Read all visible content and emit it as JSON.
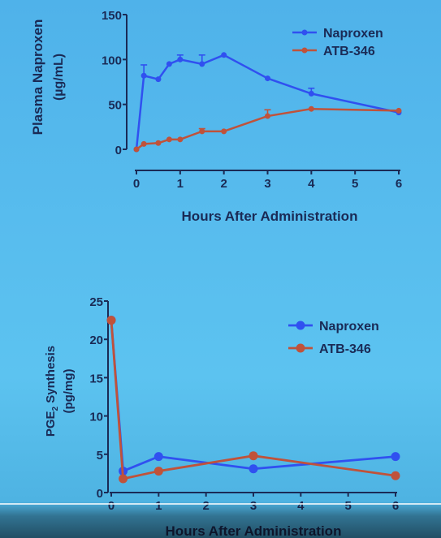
{
  "chart_data": [
    {
      "type": "line",
      "ylabel": "Plasma Naproxen",
      "ylabel2": "(µg/mL)",
      "xlabel": "Hours After Administration",
      "xlim": [
        0,
        6
      ],
      "ylim": [
        0,
        150
      ],
      "xticks": [
        0,
        1,
        2,
        3,
        4,
        5,
        6
      ],
      "yticks": [
        0,
        50,
        100,
        150
      ],
      "legend_position": "top-right",
      "series": [
        {
          "name": "Naproxen",
          "color": "#3050f0",
          "x": [
            0,
            0.17,
            0.5,
            0.75,
            1,
            1.5,
            2,
            3,
            4,
            6
          ],
          "y": [
            0,
            82,
            78,
            95,
            100,
            95,
            105,
            79,
            62,
            41
          ],
          "err": [
            0,
            12,
            0,
            0,
            5,
            10,
            0,
            0,
            6,
            0
          ]
        },
        {
          "name": "ATB-346",
          "color": "#c0523a",
          "x": [
            0,
            0.17,
            0.5,
            0.75,
            1,
            1.5,
            2,
            3,
            4,
            6
          ],
          "y": [
            0,
            6,
            7,
            11,
            11,
            20,
            20,
            37,
            45,
            43
          ],
          "err": [
            0,
            0,
            0,
            0,
            0,
            3,
            0,
            7,
            0,
            0
          ]
        }
      ]
    },
    {
      "type": "line",
      "ylabel": "PGE",
      "ylabel_sub": "2",
      "ylabel_rest": " Synthesis",
      "ylabel2": "(pg/mg)",
      "xlabel": "Hours After Administration",
      "xlim": [
        0,
        6
      ],
      "ylim": [
        0,
        25
      ],
      "xticks": [
        0,
        1,
        2,
        3,
        4,
        5,
        6
      ],
      "yticks": [
        0,
        5,
        10,
        15,
        20,
        25
      ],
      "legend_position": "top-right",
      "series": [
        {
          "name": "Naproxen",
          "color": "#3050f0",
          "x": [
            0,
            0.25,
            1,
            3,
            6
          ],
          "y": [
            22.5,
            2.8,
            4.7,
            3.1,
            4.7
          ]
        },
        {
          "name": "ATB-346",
          "color": "#c0523a",
          "x": [
            0,
            0.25,
            1,
            3,
            6
          ],
          "y": [
            22.5,
            1.8,
            2.8,
            4.8,
            2.2
          ]
        }
      ]
    }
  ]
}
